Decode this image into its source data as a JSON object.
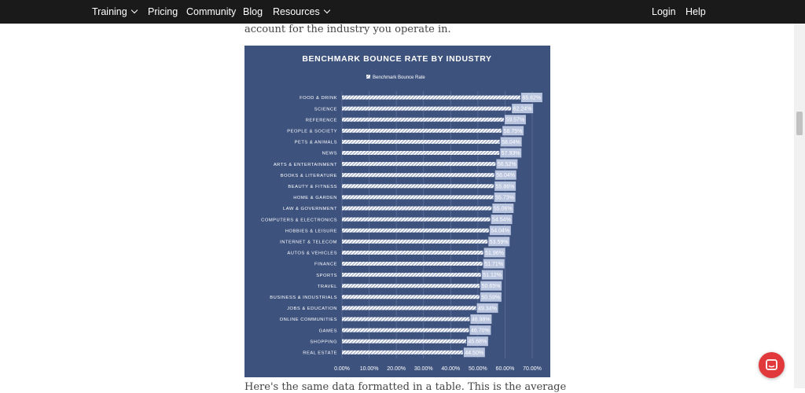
{
  "nav": {
    "training": "Training",
    "pricing": "Pricing",
    "community": "Community",
    "blog": "Blog",
    "resources": "Resources",
    "login": "Login",
    "help": "Help"
  },
  "article": {
    "lead": "account for the industry you operate in.",
    "tail": "Here's the same data formatted in a table. This is the average"
  },
  "icons": {
    "dropdown": "chevron-down-icon",
    "chat": "chat-icon"
  },
  "colors": {
    "nav_bg": "#1a1a1a",
    "chart_bg": "#3e527e",
    "bar": "#ffffff",
    "label_bg": "#b9c4de",
    "chat": "#e0383b"
  },
  "chart_data": {
    "type": "bar",
    "orientation": "horizontal",
    "title": "BENCHMARK BOUNCE RATE BY INDUSTRY",
    "legend": "Benchmark Bounce Rate",
    "legend_position": "top",
    "xlim": [
      0,
      70
    ],
    "xticks": [
      "0.00%",
      "10.00%",
      "20.00%",
      "30.00%",
      "40.00%",
      "50.00%",
      "60.00%",
      "70.00%"
    ],
    "grid": true,
    "categories": [
      "FOOD & DRINK",
      "SCIENCE",
      "REFERENCE",
      "PEOPLE & SOCIETY",
      "PETS & ANIMALS",
      "NEWS",
      "ARTS & ENTERTAINMENT",
      "BOOKS & LITERATURE",
      "BEAUTY & FITNESS",
      "HOME & GARDEN",
      "LAW & GOVERNMENT",
      "COMPUTERS & ELECTRONICS",
      "HOBBIES & LEISURE",
      "INTERNET & TELECOM",
      "AUTOS & VEHICLES",
      "FINANCE",
      "SPORTS",
      "TRAVEL",
      "BUSINESS & INDUSTRIALS",
      "JOBS & EDUCATION",
      "ONLINE COMMUNITIES",
      "GAMES",
      "SHOPPING",
      "REAL ESTATE"
    ],
    "values": [
      65.62,
      62.24,
      59.57,
      58.75,
      58.04,
      57.93,
      56.52,
      56.04,
      55.86,
      55.73,
      55.06,
      54.54,
      54.04,
      53.59,
      51.96,
      51.71,
      51.12,
      50.65,
      50.59,
      49.34,
      46.98,
      46.7,
      45.68,
      44.5
    ],
    "labels": [
      "65.62%",
      "62.24%",
      "59.57%",
      "58.75%",
      "58.04%",
      "57.93%",
      "56.52%",
      "56.04%",
      "55.86%",
      "55.73%",
      "55.06%",
      "54.54%",
      "54.04%",
      "53.59%",
      "51.96%",
      "51.71%",
      "51.12%",
      "50.65%",
      "50.59%",
      "49.34%",
      "46.98%",
      "46.70%",
      "45.68%",
      "44.50%"
    ]
  }
}
